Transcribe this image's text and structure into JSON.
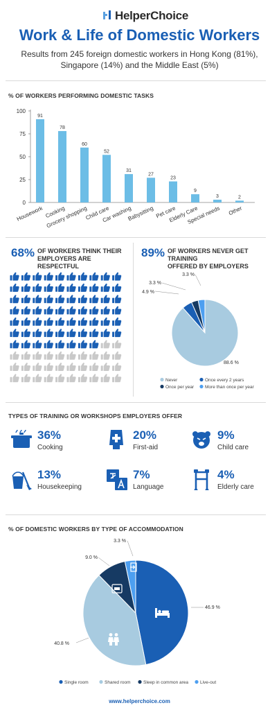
{
  "header": {
    "logo_text": "HelperChoice",
    "title": "Work & Life of Domestic Workers",
    "subtitle_line1": "Results from 245 foreign domestic workers in Hong Kong (81%),",
    "subtitle_line2": "Singapore (14%) and the Middle East (5%)"
  },
  "tasks_section": {
    "title": "% OF WORKERS PERFORMING DOMESTIC TASKS"
  },
  "respect": {
    "percent": "68%",
    "text_line1": "OF WORKERS THINK THEIR",
    "text_line2": "EMPLOYERS ARE RESPECTFUL",
    "filled_count": 68,
    "total": 100
  },
  "training_stat": {
    "percent": "89%",
    "text_line1": "OF WORKERS NEVER GET TRAINING",
    "text_line2": "OFFERED BY EMPLOYERS"
  },
  "training_types": {
    "title": "TYPES OF TRAINING OR WORKSHOPS EMPLOYERS OFFER",
    "items": [
      {
        "percent": "36%",
        "label": "Cooking",
        "icon": "cooking-pot-icon"
      },
      {
        "percent": "20%",
        "label": "First-aid",
        "icon": "first-aid-tube-icon"
      },
      {
        "percent": "9%",
        "label": "Child care",
        "icon": "crying-baby-icon"
      },
      {
        "percent": "13%",
        "label": "Housekeeping",
        "icon": "bucket-broom-icon"
      },
      {
        "percent": "7%",
        "label": "Language",
        "icon": "language-translate-icon"
      },
      {
        "percent": "4%",
        "label": "Elderly care",
        "icon": "walker-icon"
      }
    ]
  },
  "accommodation": {
    "title": "% OF DOMESTIC WORKERS BY TYPE OF ACCOMMODATION"
  },
  "footer": {
    "url": "www.helperchoice.com"
  },
  "colors": {
    "brand_blue": "#1a5fb4",
    "bar_blue": "#6cbde6",
    "light_blue": "#a8cbe0",
    "navy": "#163a63",
    "sky": "#4d9ff0",
    "grey": "#c9c9c9"
  },
  "chart_data": [
    {
      "type": "bar",
      "title": "% OF WORKERS PERFORMING DOMESTIC TASKS",
      "categories": [
        "Housework",
        "Cooking",
        "Grocery shopping",
        "Child care",
        "Car washing",
        "Babysitting",
        "Pet care",
        "Elderly Care",
        "Special needs",
        "Other"
      ],
      "values": [
        91,
        78,
        60,
        52,
        31,
        27,
        23,
        9,
        3,
        2
      ],
      "ylim": [
        0,
        100
      ],
      "yticks": [
        0,
        25,
        50,
        75,
        100
      ],
      "grid": false
    },
    {
      "type": "pie",
      "categories": [
        "Never",
        "Once every 2 years",
        "Once per year",
        "More than once per year"
      ],
      "values": [
        88.6,
        4.9,
        3.3,
        3.3
      ],
      "labels": [
        "88.6 %",
        "4.9 %",
        "3.3 %",
        "3.3 %"
      ],
      "colors": [
        "#a8cbe0",
        "#1a5fb4",
        "#163a63",
        "#4d9ff0"
      ],
      "legend": "bottom"
    },
    {
      "type": "pie",
      "title": "% OF DOMESTIC WORKERS BY TYPE OF ACCOMMODATION",
      "categories": [
        "Single room",
        "Shared room",
        "Sleep in common area",
        "Live-out"
      ],
      "values": [
        46.9,
        40.8,
        9.0,
        3.3
      ],
      "labels": [
        "46.9 %",
        "40.8 %",
        "9.0 %",
        "3.3 %"
      ],
      "colors": [
        "#1a5fb4",
        "#a8cbe0",
        "#163a63",
        "#4d9ff0"
      ],
      "legend": "bottom"
    }
  ]
}
